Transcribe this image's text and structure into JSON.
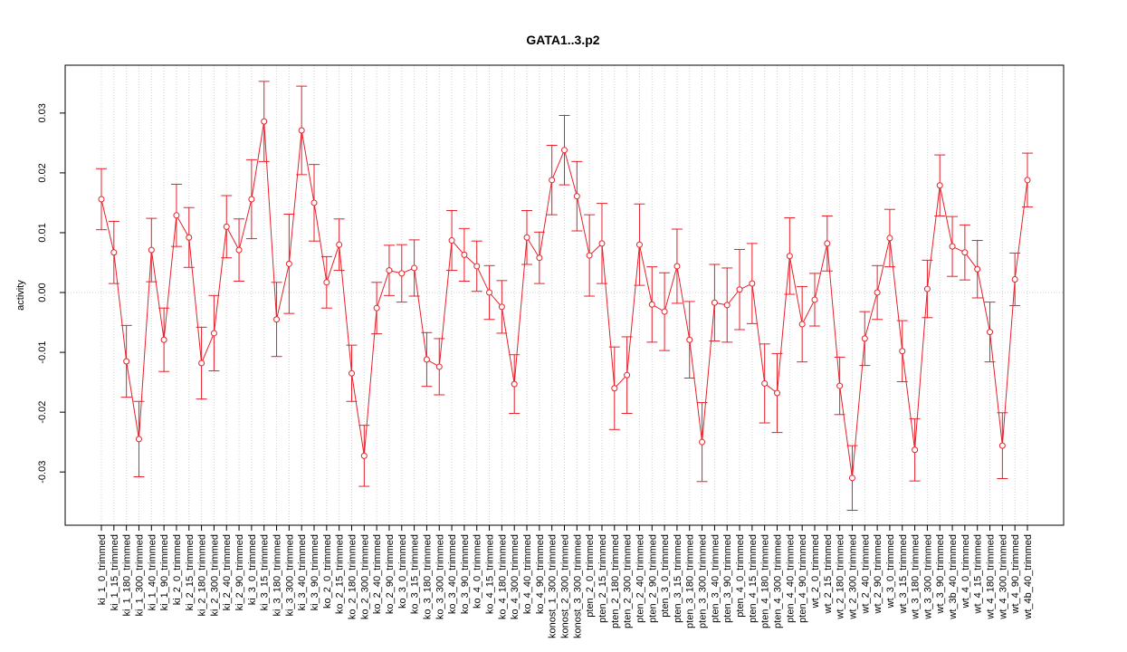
{
  "chart_data": {
    "type": "line",
    "title": "GATA1..3.p2",
    "y_label": "activity",
    "color": "#e8202a",
    "categories": [
      "ki_1_0_trimmed",
      "ki_1_15_trimmed",
      "ki_1_180_trimmed",
      "ki_1_300_trimmed",
      "ki_1_40_trimmed",
      "ki_1_90_trimmed",
      "ki_2_0_trimmed",
      "ki_2_15_trimmed",
      "ki_2_180_trimmed",
      "ki_2_300_trimmed",
      "ki_2_40_trimmed",
      "ki_2_90_trimmed",
      "ki_3_0_trimmed",
      "ki_3_15_trimmed",
      "ki_3_180_trimmed",
      "ki_3_300_trimmed",
      "ki_3_40_trimmed",
      "ki_3_90_trimmed",
      "ko_2_0_trimmed",
      "ko_2_15_trimmed",
      "ko_2_180_trimmed",
      "ko_2_300_trimmed",
      "ko_2_40_trimmed",
      "ko_2_90_trimmed",
      "ko_3_0_trimmed",
      "ko_3_15_trimmed",
      "ko_3_180_trimmed",
      "ko_3_300_trimmed",
      "ko_3_40_trimmed",
      "ko_3_90_trimmed",
      "ko_4_0_trimmed",
      "ko_4_15_trimmed",
      "ko_4_180_trimmed",
      "ko_4_300_trimmed",
      "ko_4_40_trimmed",
      "ko_4_90_trimmed",
      "konost_1_300_trimmed",
      "konost_2_300_trimmed",
      "konost_3_300_trimmed",
      "pten_2_0_trimmed",
      "pten_2_15_trimmed",
      "pten_2_180_trimmed",
      "pten_2_300_trimmed",
      "pten_2_40_trimmed",
      "pten_2_90_trimmed",
      "pten_3_0_trimmed",
      "pten_3_15_trimmed",
      "pten_3_180_trimmed",
      "pten_3_300_trimmed",
      "pten_3_40_trimmed",
      "pten_3_90_trimmed",
      "pten_4_0_trimmed",
      "pten_4_15_trimmed",
      "pten_4_180_trimmed",
      "pten_4_300_trimmed",
      "pten_4_40_trimmed",
      "pten_4_90_trimmed",
      "wt_2_0_trimmed",
      "wt_2_15_trimmed",
      "wt_2_180_trimmed",
      "wt_2_300_trimmed",
      "wt_2_40_trimmed",
      "wt_2_90_trimmed",
      "wt_3_0_trimmed",
      "wt_3_15_trimmed",
      "wt_3_180_trimmed",
      "wt_3_300_trimmed",
      "wt_3_90_trimmed",
      "wt_3b_40_trimmed",
      "wt_4_0_trimmed",
      "wt_4_15_trimmed",
      "wt_4_180_trimmed",
      "wt_4_300_trimmed",
      "wt_4_90_trimmed",
      "wt_4b_40_trimmed"
    ],
    "values": [
      0.0156,
      0.0067,
      -0.0115,
      -0.0245,
      0.0071,
      -0.0079,
      0.0129,
      0.0092,
      -0.0118,
      -0.0068,
      0.011,
      0.0071,
      0.0156,
      0.0286,
      -0.0045,
      0.0048,
      0.0271,
      0.015,
      0.0017,
      0.008,
      -0.0135,
      -0.0273,
      -0.0026,
      0.0037,
      0.0032,
      0.0041,
      -0.0112,
      -0.0124,
      0.0087,
      0.0063,
      0.0044,
      0.0,
      -0.0024,
      -0.0153,
      0.0092,
      0.0058,
      0.0188,
      0.0238,
      0.0161,
      0.0062,
      0.0082,
      -0.016,
      -0.0138,
      0.008,
      -0.002,
      -0.0032,
      0.0044,
      -0.0079,
      -0.025,
      -0.0017,
      -0.0021,
      0.0005,
      0.0015,
      -0.0152,
      -0.0168,
      0.0061,
      -0.0053,
      -0.0012,
      0.0082,
      -0.0156,
      -0.031,
      -0.0077,
      0.0,
      0.0091,
      -0.0098,
      -0.0263,
      0.0006,
      0.0179,
      0.0077,
      0.0067,
      0.0039,
      -0.0066,
      -0.0256,
      0.0022,
      0.0188
    ],
    "errors": [
      0.0051,
      0.0052,
      0.006,
      0.0063,
      0.0053,
      0.0053,
      0.0052,
      0.005,
      0.006,
      0.0063,
      0.0052,
      0.0052,
      0.0066,
      0.0067,
      0.0062,
      0.0083,
      0.0074,
      0.0064,
      0.0043,
      0.0043,
      0.0047,
      0.0051,
      0.0043,
      0.0042,
      0.0048,
      0.0047,
      0.0045,
      0.0047,
      0.005,
      0.0044,
      0.0042,
      0.0045,
      0.0044,
      0.0049,
      0.0045,
      0.0043,
      0.0058,
      0.0058,
      0.0058,
      0.0068,
      0.0067,
      0.0069,
      0.0064,
      0.0068,
      0.0063,
      0.0065,
      0.0062,
      0.0064,
      0.0066,
      0.0064,
      0.0062,
      0.0067,
      0.0067,
      0.0066,
      0.0066,
      0.0064,
      0.0063,
      0.0044,
      0.0046,
      0.0048,
      0.0054,
      0.0045,
      0.0045,
      0.0048,
      0.0051,
      0.0052,
      0.0048,
      0.0051,
      0.005,
      0.0046,
      0.0048,
      0.005,
      0.0055,
      0.0044,
      0.0045
    ],
    "ylim": [
      -0.0389,
      0.038
    ],
    "yticks": [
      -0.03,
      -0.02,
      -0.01,
      {
        "value": 0,
        "label": "0.00"
      },
      0.01,
      0.02,
      0.03
    ],
    "grid": true
  }
}
